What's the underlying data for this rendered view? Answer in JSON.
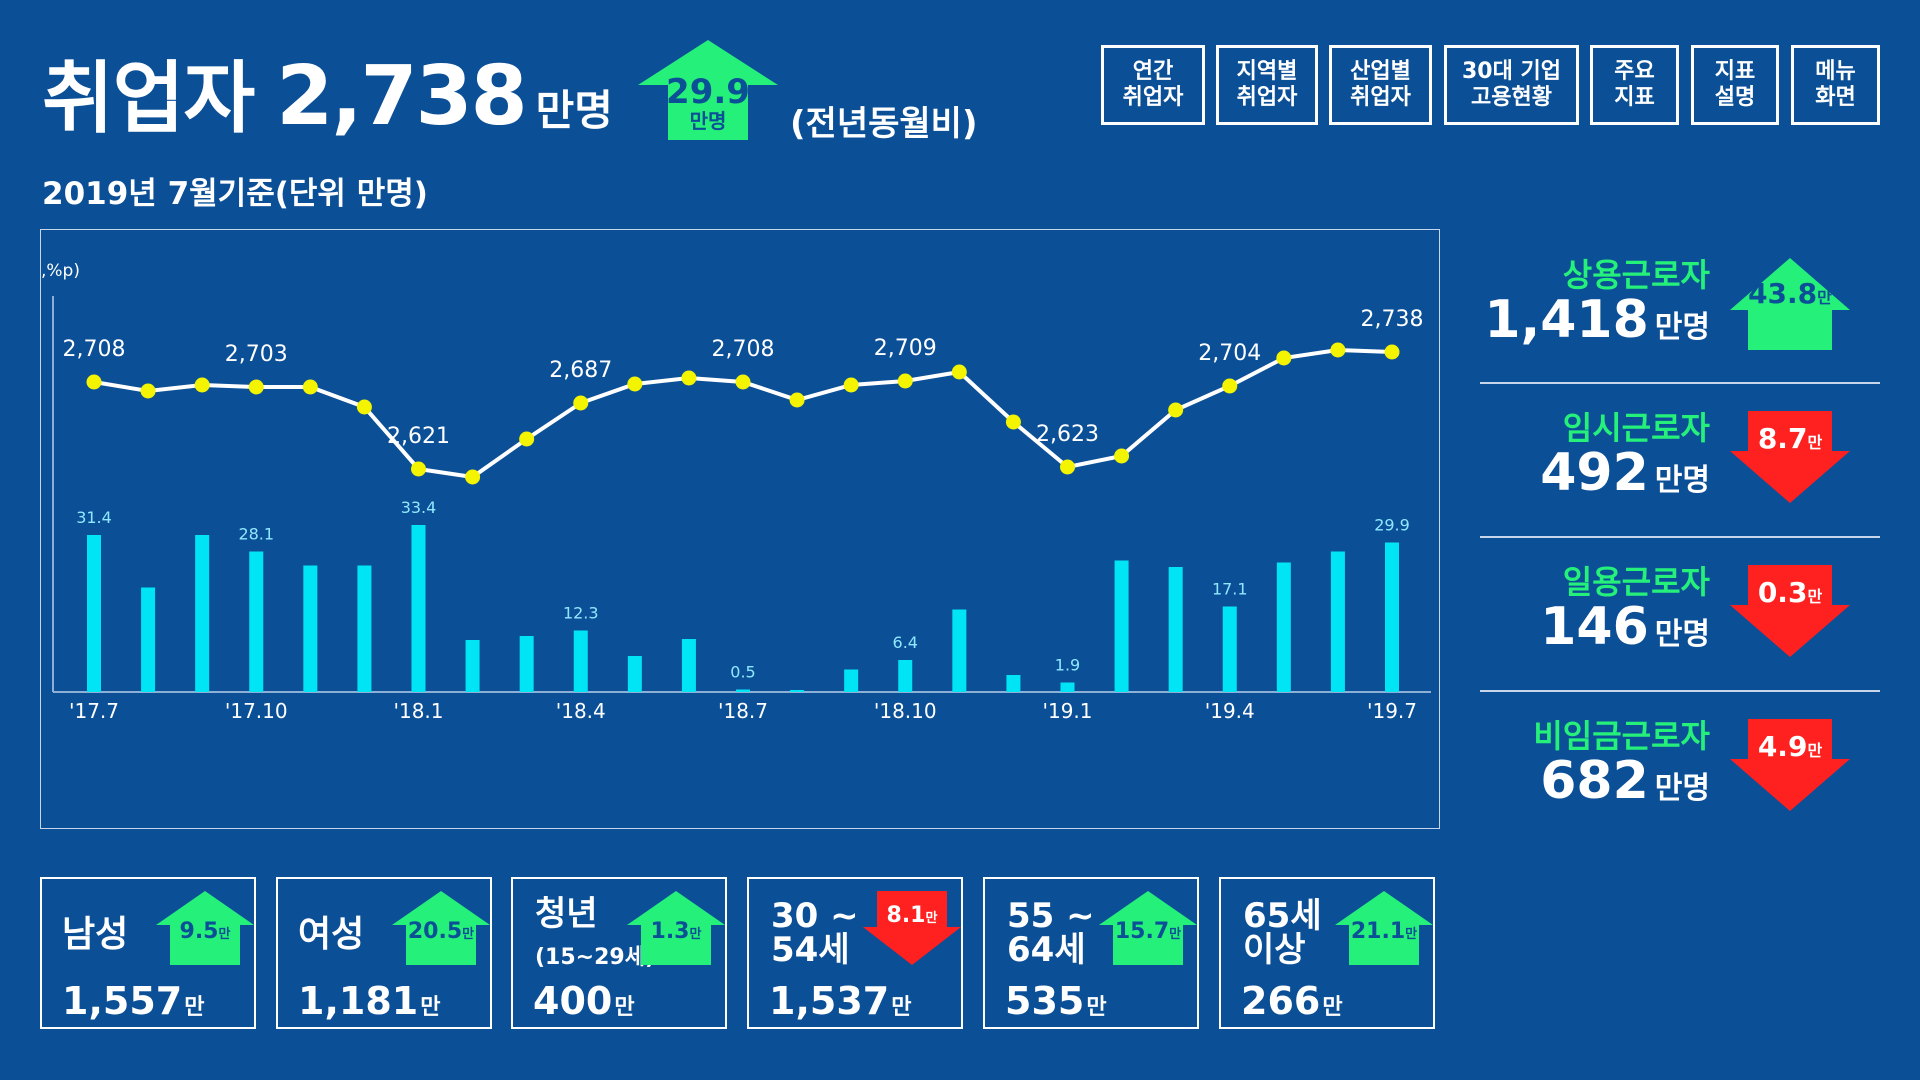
{
  "header": {
    "label": "취업자",
    "value": "2,738",
    "unit": "만명",
    "change_value": "29.9",
    "change_unit": "만명",
    "change_direction": "up",
    "yoy_note": "(전년동월비)",
    "subtitle": "2019년 7월기준(단위 만명)"
  },
  "nav": [
    {
      "line1": "연간",
      "line2": "취업자"
    },
    {
      "line1": "지역별",
      "line2": "취업자"
    },
    {
      "line1": "산업별",
      "line2": "취업자"
    },
    {
      "line1": "30대 기업",
      "line2": "고용현황"
    },
    {
      "line1": "주요",
      "line2": "지표"
    },
    {
      "line1": "지표",
      "line2": "설명"
    },
    {
      "line1": "메뉴",
      "line2": "화면"
    }
  ],
  "side": [
    {
      "label": "상용근로자",
      "value": "1,418",
      "unit": "만명",
      "change": "43.8",
      "change_unit": "만",
      "direction": "up"
    },
    {
      "label": "임시근로자",
      "value": "492",
      "unit": "만명",
      "change": "8.7",
      "change_unit": "만",
      "direction": "down"
    },
    {
      "label": "일용근로자",
      "value": "146",
      "unit": "만명",
      "change": "0.3",
      "change_unit": "만",
      "direction": "down"
    },
    {
      "label": "비임금근로자",
      "value": "682",
      "unit": "만명",
      "change": "4.9",
      "change_unit": "만",
      "direction": "down"
    }
  ],
  "cards": [
    {
      "label": "남성",
      "sub": "",
      "value": "1,557",
      "unit": "만",
      "change": "9.5",
      "change_unit": "만",
      "direction": "up"
    },
    {
      "label": "여성",
      "sub": "",
      "value": "1,181",
      "unit": "만",
      "change": "20.5",
      "change_unit": "만",
      "direction": "up"
    },
    {
      "label": "청년",
      "sub": "(15~29세)",
      "value": "400",
      "unit": "만",
      "change": "1.3",
      "change_unit": "만",
      "direction": "up"
    },
    {
      "label": "30 ~\n54세",
      "sub": "",
      "value": "1,537",
      "unit": "만",
      "change": "8.1",
      "change_unit": "만",
      "direction": "down"
    },
    {
      "label": "55 ~\n64세",
      "sub": "",
      "value": "535",
      "unit": "만",
      "change": "15.7",
      "change_unit": "만",
      "direction": "up"
    },
    {
      "label": "65세\n이상",
      "sub": "",
      "value": "266",
      "unit": "만",
      "change": "21.1",
      "change_unit": "만",
      "direction": "up"
    }
  ],
  "colors": {
    "background": "#0b4f97",
    "up": "#25f07a",
    "down": "#ff2020",
    "bar": "#00e5f5",
    "line": "#ffffff",
    "point": "#f4f400",
    "accent_text": "#25f07a"
  },
  "chart_data": {
    "type": "bar+line",
    "y_axis_label": ",%p)",
    "categories": [
      "'17.7",
      "'17.8",
      "'17.9",
      "'17.10",
      "'17.11",
      "'17.12",
      "'18.1",
      "'18.2",
      "'18.3",
      "'18.4",
      "'18.5",
      "'18.6",
      "'18.7",
      "'18.8",
      "'18.9",
      "'18.10",
      "'18.11",
      "'18.12",
      "'19.1",
      "'19.2",
      "'19.3",
      "'19.4",
      "'19.5",
      "'19.6",
      "'19.7"
    ],
    "x_tick_labels": [
      "'17.7",
      "",
      "",
      "'17.10",
      "",
      "",
      "'18.1",
      "",
      "",
      "'18.4",
      "",
      "",
      "'18.7",
      "",
      "",
      "'18.10",
      "",
      "",
      "'19.1",
      "",
      "",
      "'19.4",
      "",
      "",
      "'19.7"
    ],
    "series": [
      {
        "kind": "bar",
        "values": [
          31.4,
          20.9,
          31.4,
          28.1,
          25.3,
          25.3,
          33.4,
          10.4,
          11.2,
          12.3,
          7.2,
          10.6,
          0.5,
          0.3,
          4.5,
          6.4,
          16.5,
          3.4,
          1.9,
          26.3,
          25.0,
          17.1,
          25.9,
          28.1,
          29.9
        ],
        "value_labels": [
          "31.4",
          "",
          "",
          "28.1",
          "",
          "",
          "33.4",
          "",
          "",
          "12.3",
          "",
          "",
          "0.5",
          "",
          "",
          "6.4",
          "",
          "",
          "1.9",
          "",
          "",
          "17.1",
          "",
          "",
          "29.9"
        ]
      },
      {
        "kind": "line",
        "values": [
          2708,
          2699,
          2705,
          2703,
          2703,
          2683,
          2621,
          2613,
          2651,
          2687,
          2706,
          2712,
          2708,
          2690,
          2705,
          2709,
          2718,
          2668,
          2623,
          2634,
          2680,
          2704,
          2732,
          2740,
          2738
        ],
        "value_labels": [
          "2,708",
          "",
          "",
          "2,703",
          "",
          "",
          "2,621",
          "",
          "",
          "2,687",
          "",
          "",
          "2,708",
          "",
          "",
          "2,709",
          "",
          "",
          "2,623",
          "",
          "",
          "2,704",
          "",
          "",
          "2,738"
        ]
      }
    ]
  }
}
